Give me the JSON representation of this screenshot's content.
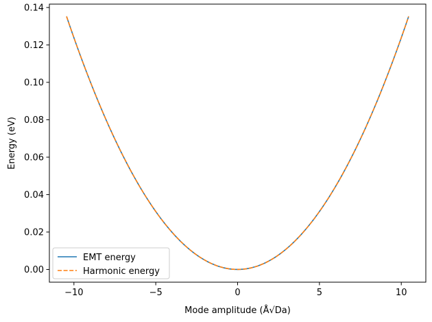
{
  "chart_data": {
    "type": "line",
    "title": "",
    "xlabel": "Mode amplitude (Å√Da)",
    "ylabel": "Energy (eV)",
    "xlim": [
      -11.5,
      11.5
    ],
    "ylim": [
      -0.0068,
      0.1418
    ],
    "xticks": [
      -10,
      -5,
      0,
      5,
      10
    ],
    "xtick_labels": [
      "−10",
      "−5",
      "0",
      "5",
      "10"
    ],
    "yticks": [
      0.0,
      0.02,
      0.04,
      0.06,
      0.08,
      0.1,
      0.12,
      0.14
    ],
    "ytick_labels": [
      "0.00",
      "0.02",
      "0.04",
      "0.06",
      "0.08",
      "0.10",
      "0.12",
      "0.14"
    ],
    "grid": false,
    "legend_position": "lower-left",
    "series": [
      {
        "name": "EMT energy",
        "style": "solid",
        "color": "#1f77b4",
        "x": [
          -10.45,
          -9,
          -7.5,
          -6,
          -5,
          -4,
          -3,
          -2,
          -1,
          0,
          1,
          2,
          3,
          4,
          5,
          6,
          7.5,
          9,
          10.45
        ],
        "y": [
          0.1352,
          0.1003,
          0.0697,
          0.0446,
          0.031,
          0.0198,
          0.0111,
          0.005,
          0.0012,
          0.0,
          0.0012,
          0.005,
          0.0111,
          0.0198,
          0.031,
          0.0446,
          0.0697,
          0.1003,
          0.1352
        ]
      },
      {
        "name": "Harmonic energy",
        "style": "dashed",
        "color": "#ff7f0e",
        "x": [
          -10.45,
          -9,
          -7.5,
          -6,
          -5,
          -4,
          -3,
          -2,
          -1,
          0,
          1,
          2,
          3,
          4,
          5,
          6,
          7.5,
          9,
          10.45
        ],
        "y": [
          0.1352,
          0.1003,
          0.0697,
          0.0446,
          0.031,
          0.0198,
          0.0111,
          0.005,
          0.0012,
          0.0,
          0.0012,
          0.005,
          0.0111,
          0.0198,
          0.031,
          0.0446,
          0.0697,
          0.1003,
          0.1352
        ]
      }
    ]
  }
}
